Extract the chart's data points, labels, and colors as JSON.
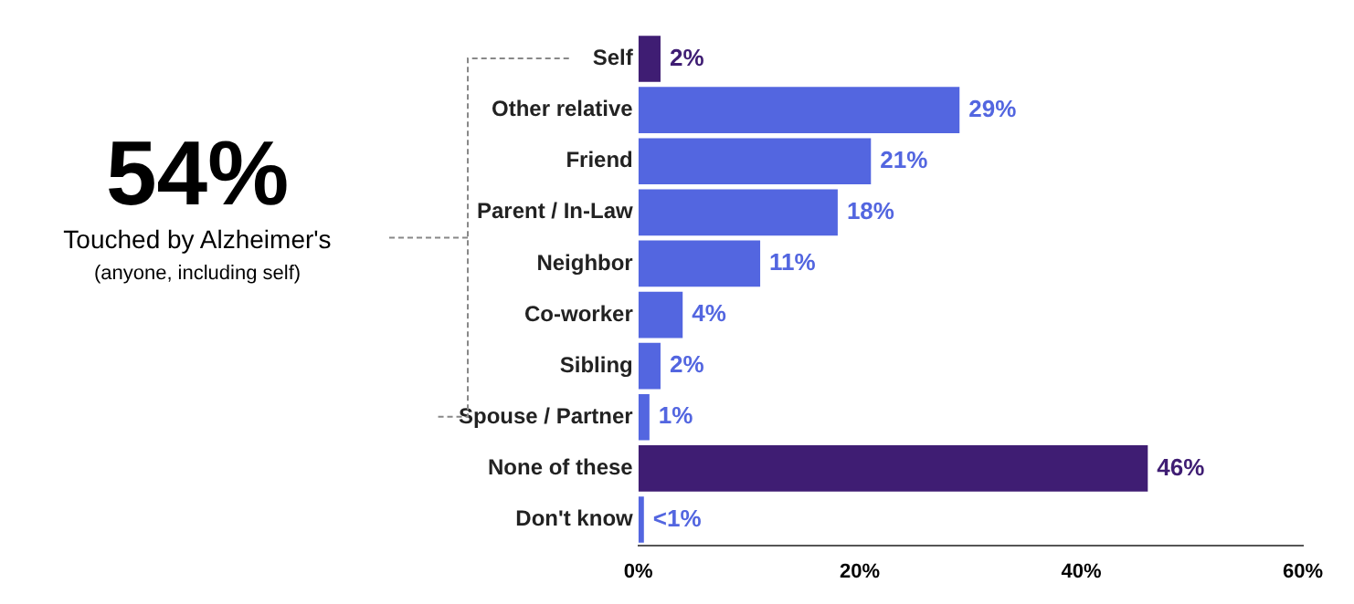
{
  "chart_data": {
    "type": "bar",
    "orientation": "horizontal",
    "categories": [
      "Self",
      "Other relative",
      "Friend",
      "Parent / In-Law",
      "Neighbor",
      "Co-worker",
      "Sibling",
      "Spouse / Partner",
      "None of these",
      "Don't know"
    ],
    "values": [
      2,
      29,
      21,
      18,
      11,
      4,
      2,
      1,
      46,
      0.5
    ],
    "colors": [
      "#3f1d73",
      "#5366e0",
      "#5366e0",
      "#5366e0",
      "#5366e0",
      "#5366e0",
      "#5366e0",
      "#5366e0",
      "#3f1d73",
      "#5366e0"
    ],
    "value_labels": [
      "2%",
      "29%",
      "21%",
      "18%",
      "11%",
      "4%",
      "2%",
      "1%",
      "46%",
      "<1%"
    ],
    "xlim": [
      0,
      60
    ],
    "xticks": [
      {
        "value": 0,
        "label": "0%"
      },
      {
        "value": 20,
        "label": "20%"
      },
      {
        "value": 40,
        "label": "40%"
      },
      {
        "value": 60,
        "label": "60%"
      }
    ],
    "grid": false,
    "legend": false,
    "annotations": [
      "54%",
      "Touched by Alzheimer's",
      "(anyone, including self)"
    ]
  }
}
